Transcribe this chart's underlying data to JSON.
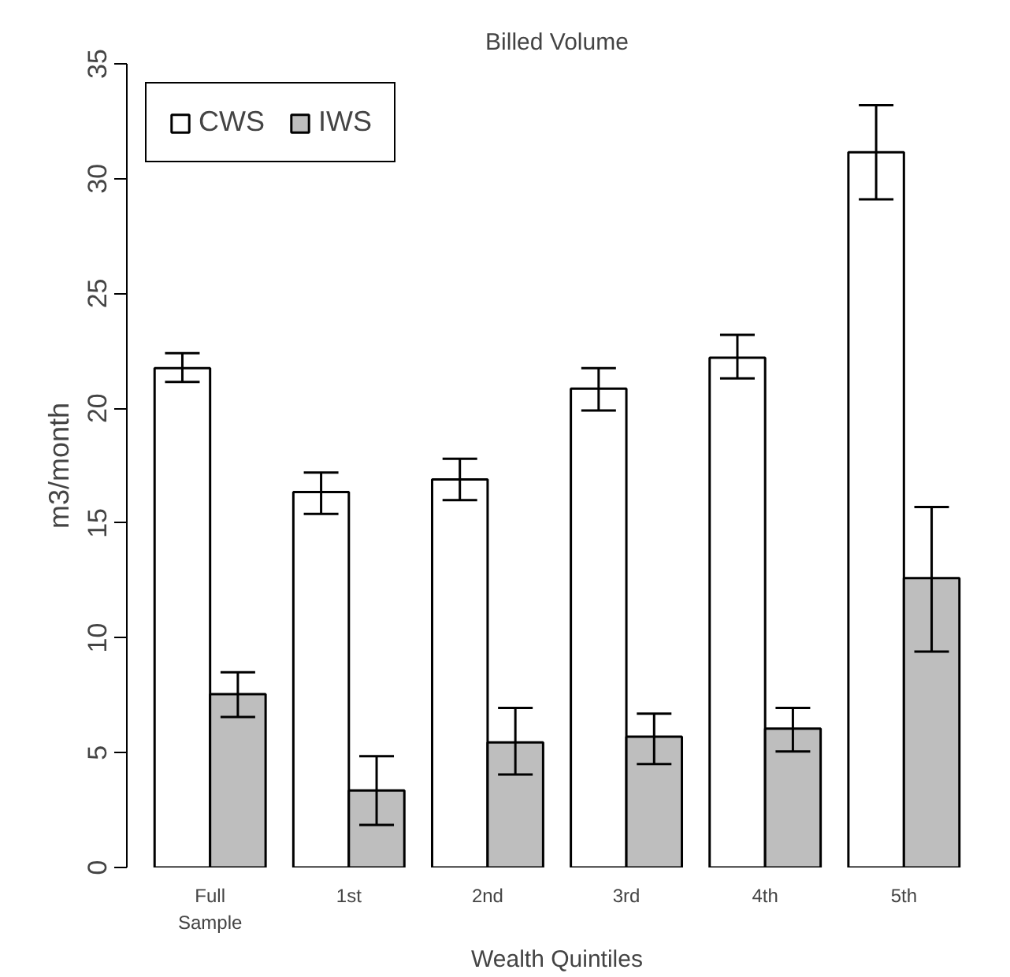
{
  "chart_data": {
    "type": "bar",
    "title": "Billed Volume",
    "xlabel": "Wealth Quintiles",
    "ylabel": "m3/month",
    "categories": [
      "Full\nSample",
      "1st",
      "2nd",
      "3rd",
      "4th",
      "5th"
    ],
    "series": [
      {
        "name": "CWS",
        "color": "#ffffff",
        "values": [
          21.75,
          16.35,
          16.9,
          20.85,
          22.2,
          31.15
        ],
        "errors": [
          [
            21.15,
            22.4
          ],
          [
            15.4,
            17.2
          ],
          [
            16.0,
            17.8
          ],
          [
            19.9,
            21.75
          ],
          [
            21.3,
            23.2
          ],
          [
            29.1,
            33.2
          ]
        ]
      },
      {
        "name": "IWS",
        "color": "#bebebe",
        "values": [
          7.55,
          3.35,
          5.45,
          5.7,
          6.05,
          12.6
        ],
        "errors": [
          [
            6.55,
            8.5
          ],
          [
            1.85,
            4.85
          ],
          [
            4.05,
            6.95
          ],
          [
            4.5,
            6.7
          ],
          [
            5.05,
            6.95
          ],
          [
            9.4,
            15.7
          ]
        ]
      }
    ],
    "ylim": [
      0,
      35
    ],
    "yticks": [
      0,
      5,
      10,
      15,
      20,
      25,
      30,
      35
    ],
    "grid": false,
    "legend": "top left"
  }
}
